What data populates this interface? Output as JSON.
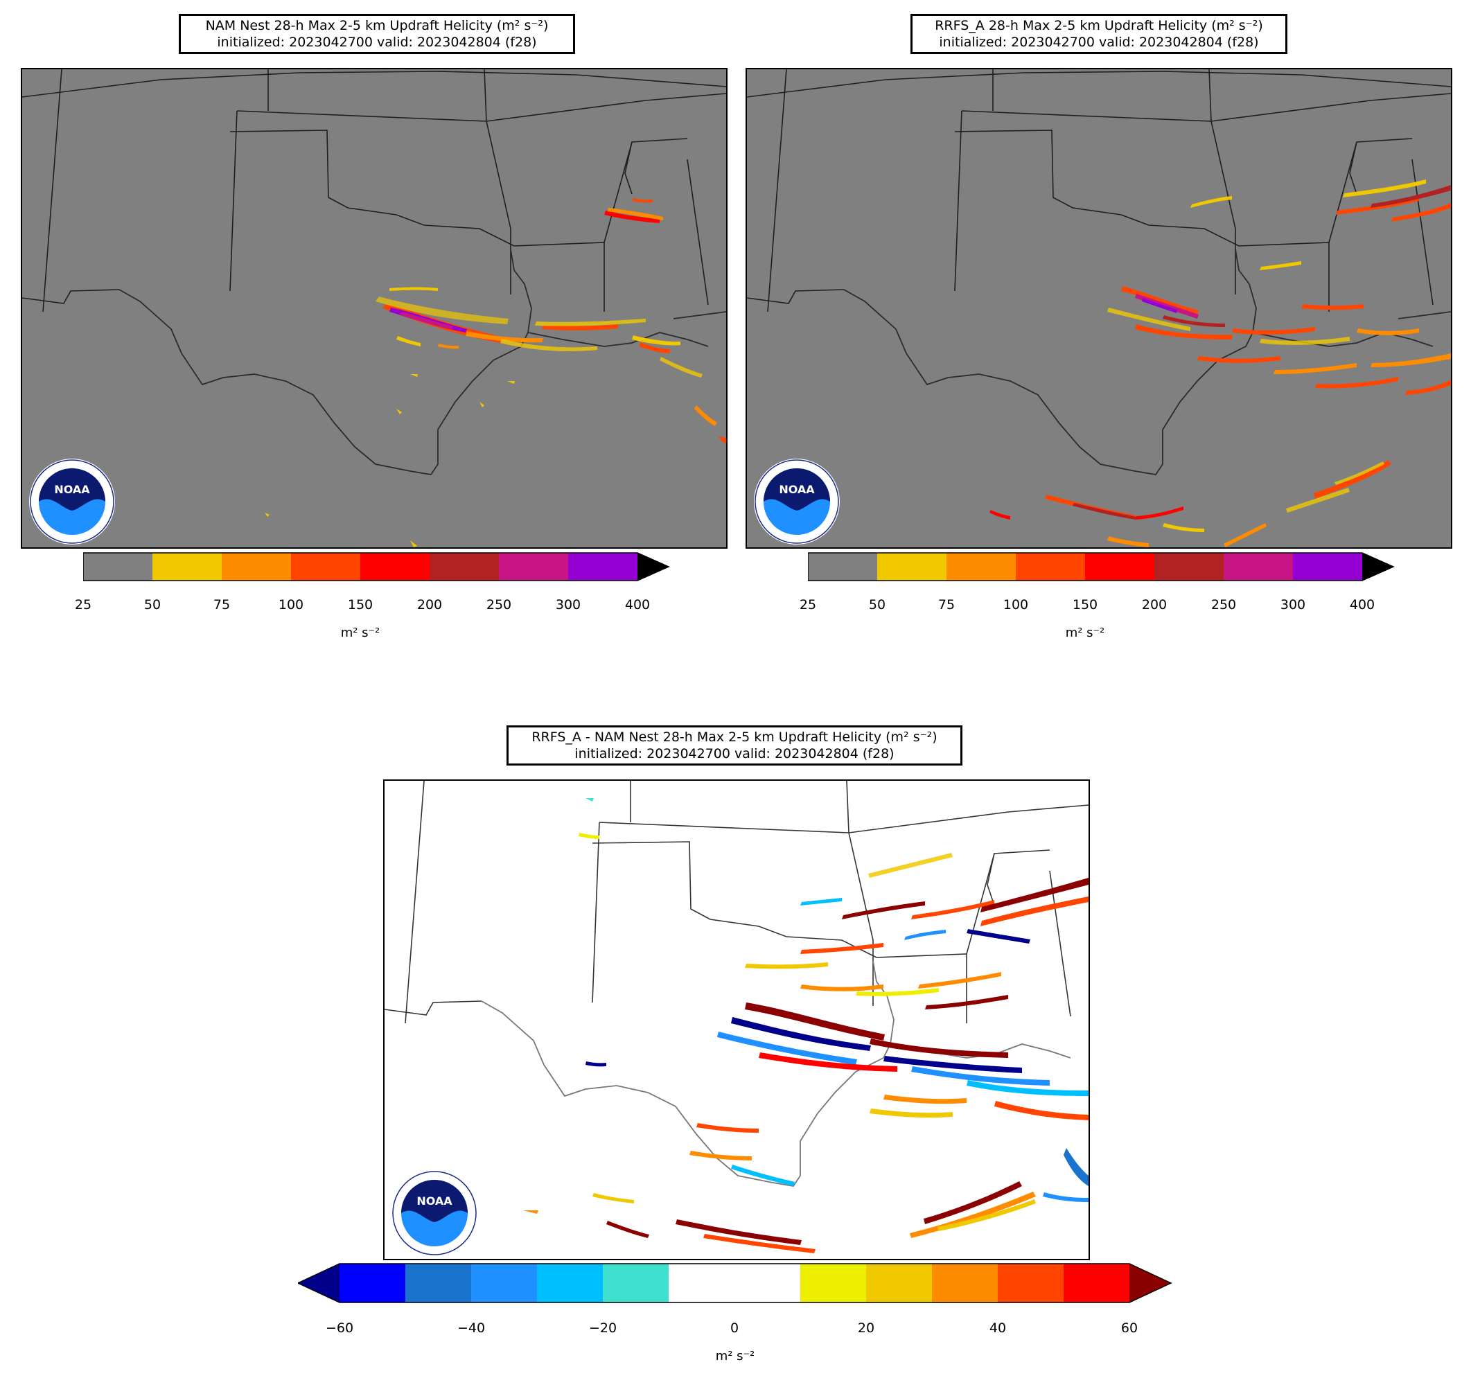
{
  "panels": {
    "nam": {
      "title_line1": "NAM Nest 28-h Max 2-5 km Updraft Helicity (m² s⁻²)",
      "title_line2": "initialized: 2023042700 valid: 2023042804 (f28)"
    },
    "rrfs": {
      "title_line1": "RRFS_A 28-h Max 2-5 km Updraft Helicity (m² s⁻²)",
      "title_line2": "initialized: 2023042700 valid: 2023042804 (f28)"
    },
    "diff": {
      "title_line1": "RRFS_A - NAM Nest 28-h Max 2-5 km Updraft Helicity (m² s⁻²)",
      "title_line2": "initialized: 2023042700 valid: 2023042804 (f28)"
    }
  },
  "colorbar_uh": {
    "ticks": [
      "25",
      "50",
      "75",
      "100",
      "150",
      "200",
      "250",
      "300",
      "400"
    ],
    "colors": [
      "#808080",
      "#f0c800",
      "#ff8c00",
      "#ff4500",
      "#ff0000",
      "#b22222",
      "#c71585",
      "#9400d3"
    ],
    "extend_color": "#000000",
    "unit": "m² s⁻²"
  },
  "colorbar_diff": {
    "ticks": [
      "−60",
      "−40",
      "−20",
      "0",
      "20",
      "40",
      "60"
    ],
    "colors": [
      "#0000ff",
      "#1874cd",
      "#1e90ff",
      "#00bfff",
      "#40e0d0",
      "#ffffff",
      "#ffffff",
      "#eeee00",
      "#f0c800",
      "#ff8c00",
      "#ff4500",
      "#ff0000"
    ],
    "extend_low": "#00008b",
    "extend_high": "#8b0000",
    "unit": "m² s⁻²"
  },
  "logo": {
    "text": "NOAA",
    "icon": "noaa-logo-icon"
  }
}
